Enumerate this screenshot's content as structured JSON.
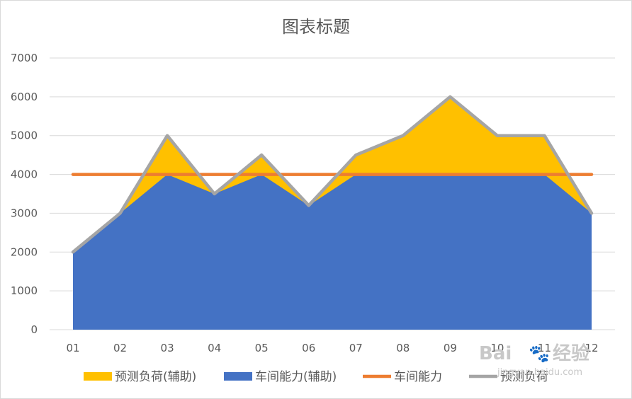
{
  "chart_data": {
    "type": "area",
    "title": "图表标题",
    "xlabel": "",
    "ylabel": "",
    "categories": [
      "01",
      "02",
      "03",
      "04",
      "05",
      "06",
      "07",
      "08",
      "09",
      "10",
      "11",
      "12"
    ],
    "ylim": [
      0,
      7000
    ],
    "yticks": [
      0,
      1000,
      2000,
      3000,
      4000,
      5000,
      6000,
      7000
    ],
    "grid": true,
    "legend_position": "bottom",
    "series": [
      {
        "name": "预测负荷(辅助)",
        "kind": "area",
        "color": "#FFC000",
        "values": [
          2000,
          3000,
          5000,
          3500,
          4500,
          3200,
          4500,
          5000,
          6000,
          5000,
          5000,
          3000
        ]
      },
      {
        "name": "车间能力(辅助)",
        "kind": "area",
        "color": "#4472C4",
        "values": [
          2000,
          3000,
          4000,
          3500,
          4000,
          3200,
          4000,
          4000,
          4000,
          4000,
          4000,
          3000
        ]
      },
      {
        "name": "车间能力",
        "kind": "line",
        "color": "#ED7D31",
        "values": [
          4000,
          4000,
          4000,
          4000,
          4000,
          4000,
          4000,
          4000,
          4000,
          4000,
          4000,
          4000
        ]
      },
      {
        "name": "预测负荷",
        "kind": "line",
        "color": "#A5A5A5",
        "values": [
          2000,
          3000,
          5000,
          3500,
          4500,
          3200,
          4500,
          5000,
          6000,
          5000,
          5000,
          3000
        ]
      }
    ]
  },
  "watermark": {
    "brand": "Bai",
    "paw": "🐾",
    "brand_cn": "经验",
    "url": "jingyan.baidu.com"
  }
}
